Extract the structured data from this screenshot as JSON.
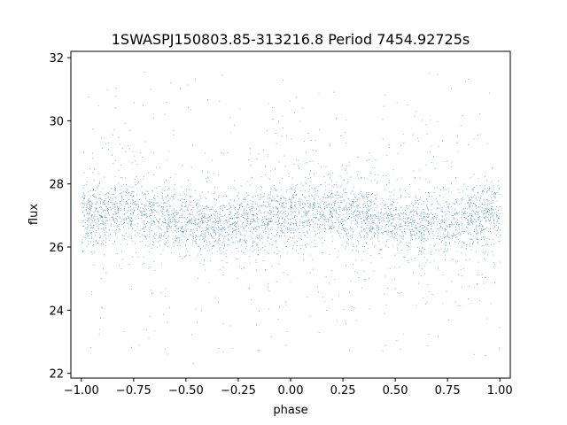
{
  "chart_data": {
    "type": "scatter",
    "title": "1SWASPJ150803.85-313216.8 Period 7454.92725s",
    "xlabel": "phase",
    "ylabel": "flux",
    "xlim": [
      -1.05,
      1.05
    ],
    "ylim": [
      21.85,
      32.2
    ],
    "xticks": [
      -1.0,
      -0.75,
      -0.5,
      -0.25,
      0.0,
      0.25,
      0.5,
      0.75,
      1.0
    ],
    "xtick_labels": [
      "−1.00",
      "−0.75",
      "−0.50",
      "−0.25",
      "0.00",
      "0.25",
      "0.50",
      "0.75",
      "1.00"
    ],
    "yticks": [
      22,
      24,
      26,
      28,
      30,
      32
    ],
    "ytick_labels": [
      "22",
      "24",
      "26",
      "28",
      "30",
      "32"
    ],
    "grid": false,
    "legend": "none",
    "color": "#1f77b4",
    "x_range": [
      -1.0,
      1.0
    ],
    "flux_range": [
      22.3,
      31.6
    ],
    "phase_curve": {
      "phase": [
        0.0,
        0.125,
        0.25,
        0.375,
        0.5,
        0.625,
        0.75,
        0.875,
        1.0
      ],
      "median_flux": [
        27.0,
        27.1,
        27.2,
        26.95,
        26.75,
        26.7,
        26.8,
        26.9,
        27.0
      ]
    },
    "core_spread": 0.5,
    "wing_spread": 1.5
  }
}
